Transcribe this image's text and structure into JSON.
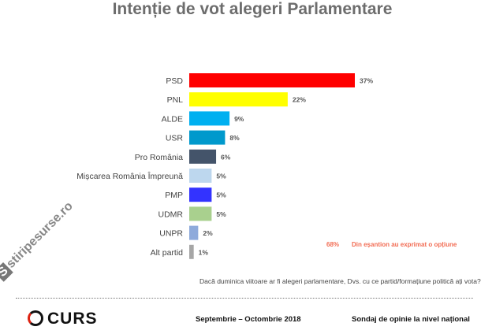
{
  "title": "Intenție de vot alegeri Parlamentare",
  "chart_data": {
    "type": "bar",
    "orientation": "horizontal",
    "title": "Intenție de vot alegeri Parlamentare",
    "categories": [
      "PSD",
      "PNL",
      "ALDE",
      "USR",
      "Pro România",
      "Mișcarea România Împreună",
      "PMP",
      "UDMR",
      "UNPR",
      "Alt partid"
    ],
    "values": [
      37,
      22,
      9,
      8,
      6,
      5,
      5,
      5,
      2,
      1
    ],
    "value_labels": [
      "37%",
      "22%",
      "9%",
      "8%",
      "6%",
      "5%",
      "5%",
      "5%",
      "2%",
      "1%"
    ],
    "colors": [
      "#ff0000",
      "#ffff00",
      "#00b0f0",
      "#0099cc",
      "#44546a",
      "#bdd7ee",
      "#3333ff",
      "#a9d08e",
      "#8eaadb",
      "#a6a6a6"
    ],
    "xlabel": "",
    "ylabel": "",
    "xlim": [
      0,
      40
    ],
    "grid": false
  },
  "note": {
    "percent": "68%",
    "text": "Din eșantion au exprimat o opțiune"
  },
  "question": "Dacă duminica viitoare ar fi alegeri parlamentare, Dvs. cu ce partid/formațiune politică ați vota?",
  "footer": {
    "brand": "CURS",
    "period": "Septembrie – Octombrie 2018",
    "survey": "Sondaj de opinie la nivel național"
  },
  "watermark": {
    "letter": "S",
    "text": "stiripesurse.ro"
  }
}
